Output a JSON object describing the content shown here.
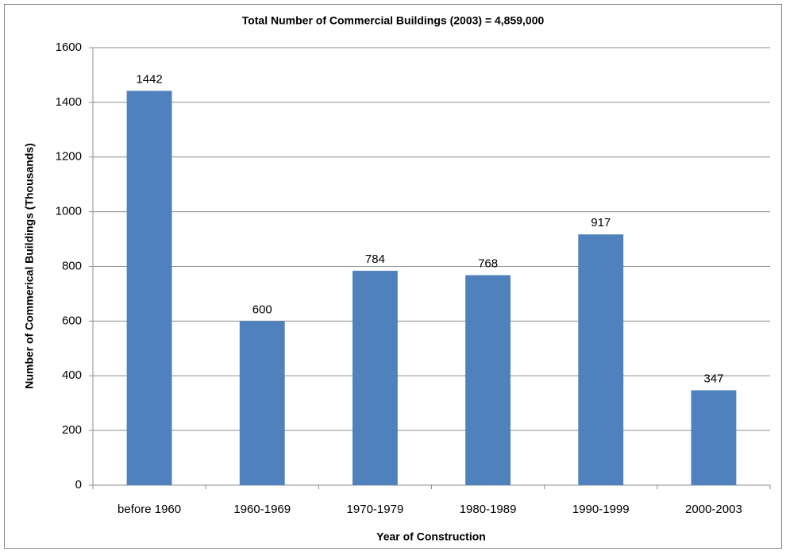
{
  "chart_data": {
    "type": "bar",
    "title": "Total Number of Commercial Buildings (2003) = 4,859,000",
    "x_label": "Year of Construction",
    "y_label": "Number of Commerical Buildings (Thousands)",
    "categories": [
      "before 1960",
      "1960-1969",
      "1970-1979",
      "1980-1989",
      "1990-1999",
      "2000-2003"
    ],
    "values": [
      1442,
      600,
      784,
      768,
      917,
      347
    ],
    "color": "#4f81bd",
    "ylim": [
      0,
      1600
    ],
    "yticks": [
      0,
      200,
      400,
      600,
      800,
      1000,
      1200,
      1400,
      1600
    ],
    "grid": true
  }
}
